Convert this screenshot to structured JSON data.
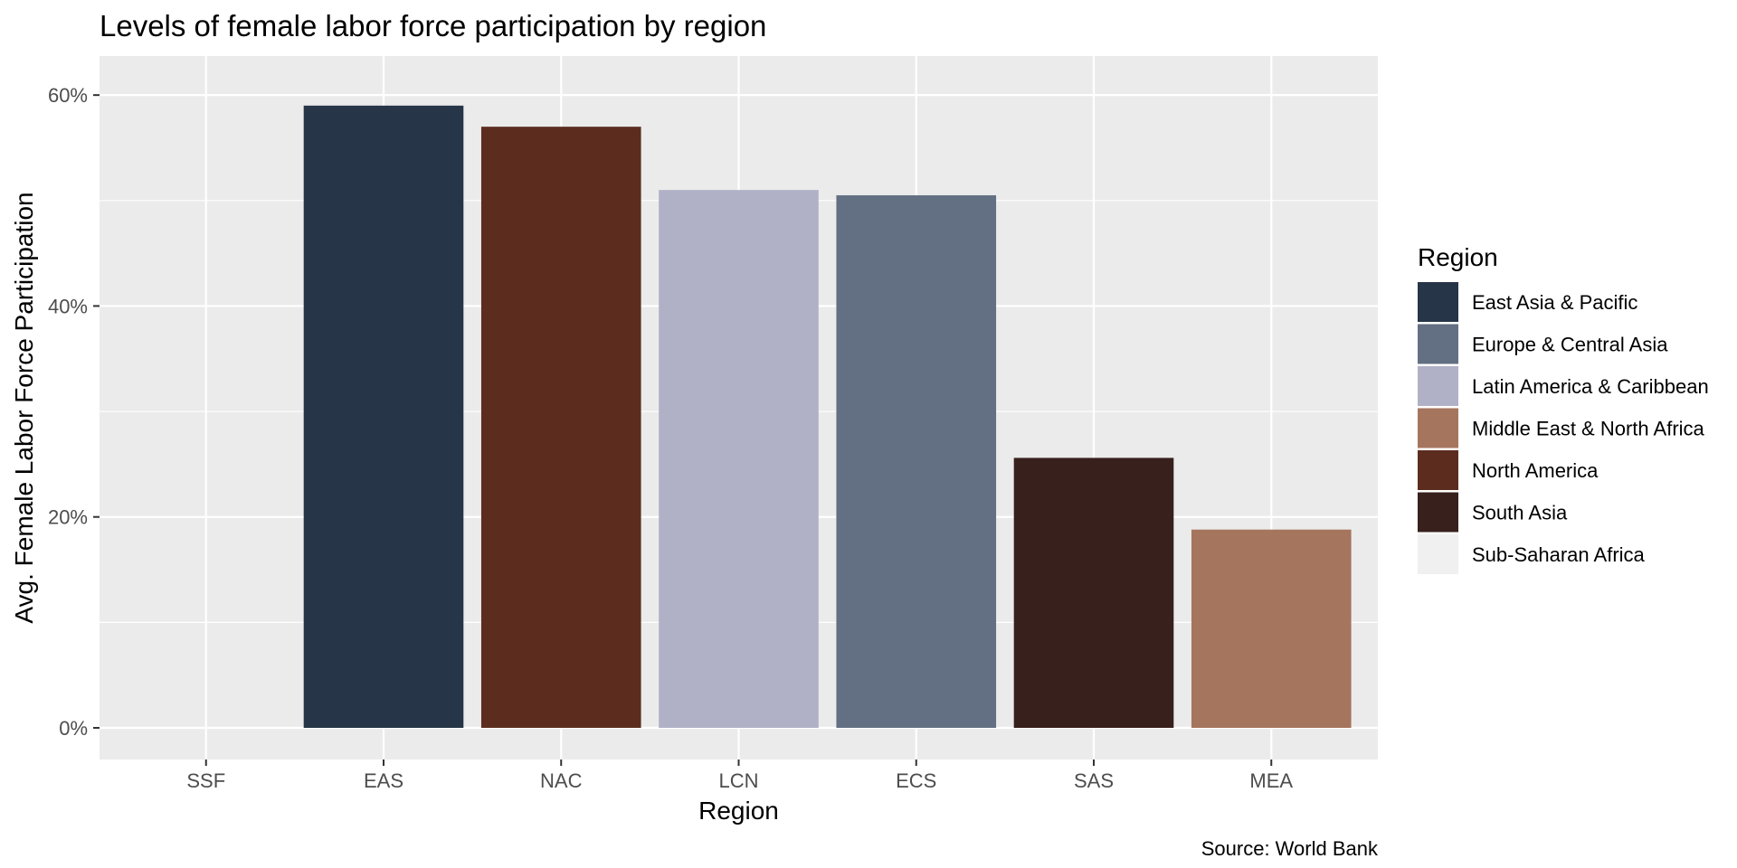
{
  "chart_data": {
    "type": "bar",
    "title": "Levels of female labor force participation by region",
    "xlabel": "Region",
    "ylabel": "Avg. Female Labor Force Participation",
    "caption": "Source: World Bank",
    "categories": [
      "SSF",
      "EAS",
      "NAC",
      "LCN",
      "ECS",
      "SAS",
      "MEA"
    ],
    "values": [
      0,
      0.59,
      0.57,
      0.51,
      0.505,
      0.256,
      0.188
    ],
    "bar_colors": [
      "#F0F0F0",
      "#263547",
      "#5C2D1E",
      "#B0B1C6",
      "#637083",
      "#38201D",
      "#A6755E"
    ],
    "ylim": [
      -0.03,
      0.637
    ],
    "y_ticks": [
      0,
      0.2,
      0.4,
      0.6
    ],
    "y_tick_labels": [
      "0%",
      "20%",
      "40%",
      "60%"
    ],
    "grid": true,
    "panel_background": "#EBEBEB",
    "legend": {
      "title": "Region",
      "position": "right",
      "entries": [
        {
          "label": "East Asia & Pacific",
          "color": "#263547"
        },
        {
          "label": "Europe & Central Asia",
          "color": "#637083"
        },
        {
          "label": "Latin America & Caribbean",
          "color": "#B0B1C6"
        },
        {
          "label": "Middle East & North Africa",
          "color": "#A6755E"
        },
        {
          "label": "North America",
          "color": "#5C2D1E"
        },
        {
          "label": "South Asia",
          "color": "#38201D"
        },
        {
          "label": "Sub-Saharan Africa",
          "color": "#F0F0F0"
        }
      ]
    }
  }
}
